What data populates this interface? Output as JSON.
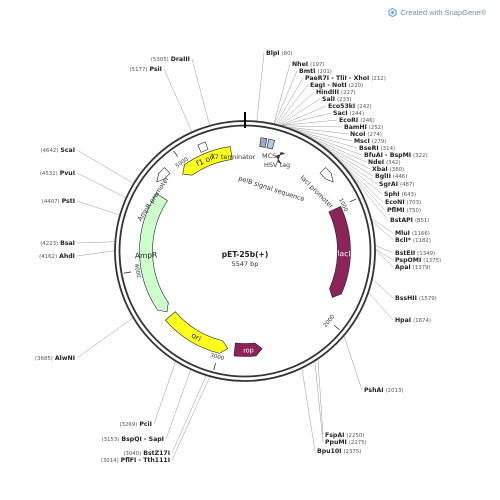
{
  "watermark": "Created with SnapGene®",
  "plasmid": {
    "name": "pET-25b(+)",
    "size": "5547 bp"
  },
  "ticks": [
    "1000",
    "2000",
    "3000",
    "4000",
    "5000"
  ],
  "sites": [
    {
      "name": "BlpI",
      "pos": "(80)"
    },
    {
      "name": "NheI",
      "pos": "(197)"
    },
    {
      "name": "BmtI",
      "pos": "(201)"
    },
    {
      "name": "PaeR7I - TliI - XhoI",
      "pos": "(212)"
    },
    {
      "name": "EagI - NotI",
      "pos": "(220)"
    },
    {
      "name": "HindIII",
      "pos": "(227)"
    },
    {
      "name": "SalI",
      "pos": "(233)"
    },
    {
      "name": "Eco53kI",
      "pos": "(242)"
    },
    {
      "name": "SacI",
      "pos": "(244)"
    },
    {
      "name": "EcoRI",
      "pos": "(246)"
    },
    {
      "name": "BamHI",
      "pos": "(252)"
    },
    {
      "name": "NcoI",
      "pos": "(274)"
    },
    {
      "name": "MscI",
      "pos": "(279)"
    },
    {
      "name": "BseRI",
      "pos": "(314)"
    },
    {
      "name": "BfuAI - BspMI",
      "pos": "(322)"
    },
    {
      "name": "NdeI",
      "pos": "(342)"
    },
    {
      "name": "XbaI",
      "pos": "(380)"
    },
    {
      "name": "BglII",
      "pos": "(446)"
    },
    {
      "name": "SgrAI",
      "pos": "(487)"
    },
    {
      "name": "SphI",
      "pos": "(643)"
    },
    {
      "name": "EcoNI",
      "pos": "(703)"
    },
    {
      "name": "PflMI",
      "pos": "(750)"
    },
    {
      "name": "BstAPI",
      "pos": "(851)"
    },
    {
      "name": "MluI",
      "pos": "(1166)"
    },
    {
      "name": "BclI*",
      "pos": "(1182)"
    },
    {
      "name": "BstEII",
      "pos": "(1349)"
    },
    {
      "name": "PspOMI",
      "pos": "(1375)"
    },
    {
      "name": "ApaI",
      "pos": "(1379)"
    },
    {
      "name": "BssHII",
      "pos": "(1579)"
    },
    {
      "name": "HpaI",
      "pos": "(1674)"
    },
    {
      "name": "PshAI",
      "pos": "(2013)"
    },
    {
      "name": "FspAI",
      "pos": "(2250)"
    },
    {
      "name": "PpuMI",
      "pos": "(2275)"
    },
    {
      "name": "Bpu10I",
      "pos": "(2375)"
    },
    {
      "name": "BstZ17I",
      "pos": "(3040)"
    },
    {
      "name": "PflFI - Tth111I",
      "pos": "(3014)"
    },
    {
      "name": "BspQI - SapI",
      "pos": "(3153)"
    },
    {
      "name": "PciI",
      "pos": "(3269)"
    },
    {
      "name": "AlwNI",
      "pos": "(3685)"
    },
    {
      "name": "AhdI",
      "pos": "(4162)"
    },
    {
      "name": "BsaI",
      "pos": "(4223)"
    },
    {
      "name": "PstI",
      "pos": "(4407)"
    },
    {
      "name": "PvuI",
      "pos": "(4532)"
    },
    {
      "name": "ScaI",
      "pos": "(4642)"
    },
    {
      "name": "PsiI",
      "pos": "(5177)"
    },
    {
      "name": "DraIII",
      "pos": "(5305)"
    }
  ],
  "features": [
    {
      "label": "f1 ori",
      "color": "#ffff1e"
    },
    {
      "label": "AmpR",
      "color": "#ccffcc"
    },
    {
      "label": "ori",
      "color": "#ffff1e"
    },
    {
      "label": "rop",
      "color": "#8c2457"
    },
    {
      "label": "lacI",
      "color": "#8c2457"
    },
    {
      "label": "T7 terminator",
      "color": "#ffffff"
    },
    {
      "label": "HSV tag",
      "color": "#b4cbe3"
    },
    {
      "label": "MCS",
      "color": "#9aa8c9"
    },
    {
      "label": "pelB signal sequence",
      "color": "#8c2457"
    },
    {
      "label": "AmpR promoter",
      "color": "#ffffff"
    },
    {
      "label": "lacI promoter",
      "color": "#ffffff"
    }
  ]
}
